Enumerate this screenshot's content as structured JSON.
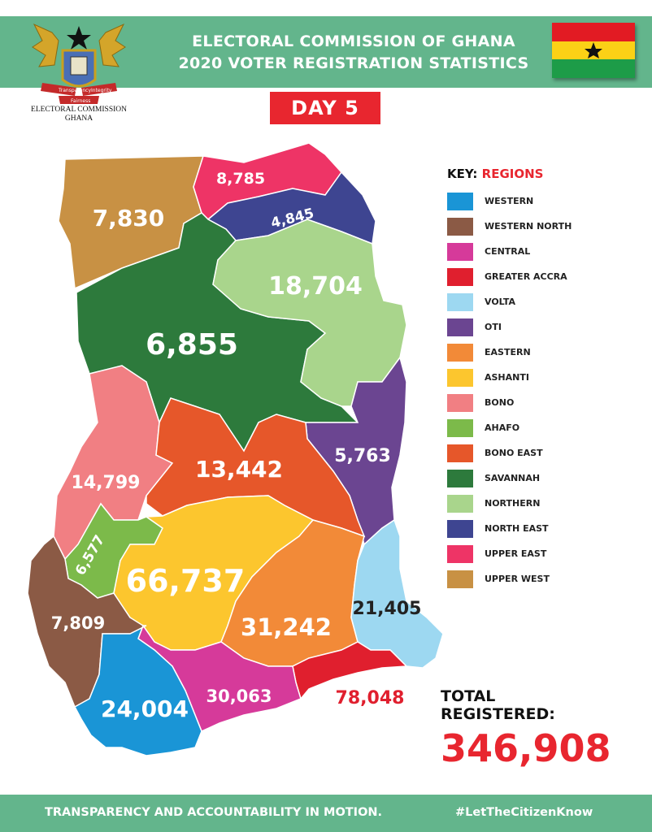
{
  "header": {
    "title_line1": "ELECTORAL COMMISSION OF GHANA",
    "title_line2": "2020 VOTER REGISTRATION STATISTICS",
    "logo_caption_line1": "ELECTORAL COMMISSION",
    "logo_caption_line2": "GHANA",
    "logo_banner_left": "Transparency",
    "logo_banner_right": "Integrity",
    "logo_banner_bottom": "Fairness"
  },
  "day_label": "DAY 5",
  "key": {
    "title_prefix": "KEY:",
    "title_suffix": "REGIONS",
    "regions": [
      {
        "name": "WESTERN",
        "color": "#1a95d6"
      },
      {
        "name": "WESTERN NORTH",
        "color": "#8b5a45"
      },
      {
        "name": "CENTRAL",
        "color": "#d63a9a"
      },
      {
        "name": "GREATER ACCRA",
        "color": "#e01f2e"
      },
      {
        "name": "VOLTA",
        "color": "#9dd8f1"
      },
      {
        "name": "OTI",
        "color": "#6b4591"
      },
      {
        "name": "EASTERN",
        "color": "#f28a38"
      },
      {
        "name": "ASHANTI",
        "color": "#fcc62e"
      },
      {
        "name": "BONO",
        "color": "#f17f83"
      },
      {
        "name": "AHAFO",
        "color": "#7cba4a"
      },
      {
        "name": "BONO EAST",
        "color": "#e6572a"
      },
      {
        "name": "SAVANNAH",
        "color": "#2d7a3c"
      },
      {
        "name": "NORTHERN",
        "color": "#a9d58c"
      },
      {
        "name": "NORTH EAST",
        "color": "#3e4591"
      },
      {
        "name": "UPPER EAST",
        "color": "#ee3466"
      },
      {
        "name": "UPPER WEST",
        "color": "#c89144"
      }
    ]
  },
  "regions": {
    "upper_west": "7,830",
    "upper_east": "8,785",
    "north_east": "4,845",
    "northern": "18,704",
    "savannah": "6,855",
    "oti": "5,763",
    "bono": "14,799",
    "bono_east": "13,442",
    "ahafo": "6,577",
    "ashanti": "66,737",
    "western_north": "7,809",
    "eastern": "31,242",
    "volta": "21,405",
    "western": "24,004",
    "central": "30,063",
    "greater_accra": "78,048"
  },
  "total": {
    "label_line1": "TOTAL",
    "label_line2": "REGISTERED:",
    "value": "346,908"
  },
  "footer": {
    "left": "TRANSPARENCY AND ACCOUNTABILITY IN MOTION.",
    "right": "#LetTheCitizenKnow"
  }
}
